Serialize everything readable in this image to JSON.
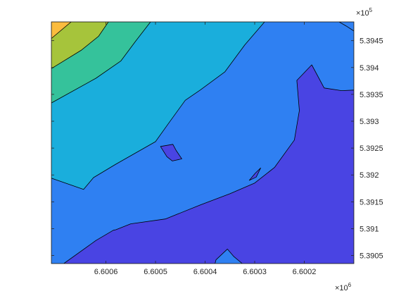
{
  "chart_data": {
    "type": "contourf",
    "title": "",
    "xlabel": "",
    "ylabel": "",
    "x_direction": "reverse",
    "xlim": [
      6.6001,
      6.60071
    ],
    "ylim": [
      5.39035,
      5.39485
    ],
    "x_ticks": [
      6.6006,
      6.6005,
      6.6004,
      6.6003,
      6.6002
    ],
    "x_tick_labels": [
      "6.6006",
      "6.6005",
      "6.6004",
      "6.6003",
      "6.6002"
    ],
    "y_ticks": [
      5.3905,
      5.391,
      5.3915,
      5.392,
      5.3925,
      5.393,
      5.3935,
      5.394,
      5.3945
    ],
    "y_tick_labels": [
      "5.3905",
      "5.391",
      "5.3915",
      "5.392",
      "5.3925",
      "5.393",
      "5.3935",
      "5.394",
      "5.3945"
    ],
    "x_exponent": {
      "base": "×10",
      "power": "6"
    },
    "y_exponent": {
      "base": "×10",
      "power": "5"
    },
    "levels": [
      {
        "name": "level-1",
        "color": "#4944e3"
      },
      {
        "name": "level-2",
        "color": "#2f80f2"
      },
      {
        "name": "level-3",
        "color": "#1aaedc"
      },
      {
        "name": "level-4",
        "color": "#35c29b"
      },
      {
        "name": "level-5",
        "color": "#a6c43b"
      },
      {
        "name": "level-6",
        "color": "#fbbc3e"
      }
    ],
    "regions": [
      {
        "name": "region-level-2",
        "level": 1,
        "points": [
          [
            6.60071,
            5.39035
          ],
          [
            6.60071,
            5.39485
          ],
          [
            6.6001,
            5.39485
          ],
          [
            6.6001,
            5.39035
          ]
        ]
      },
      {
        "name": "region-level-1-main",
        "level": 0,
        "points": [
          [
            6.60071,
            5.39035
          ],
          [
            6.600685,
            5.39035
          ],
          [
            6.60062,
            5.39078
          ],
          [
            6.600585,
            5.39097
          ],
          [
            6.60058,
            5.39098
          ],
          [
            6.60055,
            5.39109
          ],
          [
            6.60048,
            5.39118
          ],
          [
            6.60041,
            5.39144
          ],
          [
            6.60035,
            5.39165
          ],
          [
            6.6003,
            5.39185
          ],
          [
            6.60026,
            5.39214
          ],
          [
            6.60022,
            5.39265
          ],
          [
            6.60021,
            5.3932
          ],
          [
            6.600215,
            5.39376
          ],
          [
            6.600185,
            5.39405
          ],
          [
            6.60016,
            5.39362
          ],
          [
            6.600125,
            5.39357
          ],
          [
            6.6001,
            5.39358
          ],
          [
            6.6001,
            5.39035
          ]
        ]
      },
      {
        "name": "region-level-1-island",
        "level": 0,
        "points": [
          [
            6.600311,
            5.3919
          ],
          [
            6.600297,
            5.39196
          ],
          [
            6.600288,
            5.39213
          ],
          [
            6.600299,
            5.39203
          ]
        ]
      },
      {
        "name": "region-level-1-vessel",
        "level": 0,
        "points": [
          [
            6.60049,
            5.39253
          ],
          [
            6.600465,
            5.39257
          ],
          [
            6.600458,
            5.39245
          ],
          [
            6.600447,
            5.3923
          ],
          [
            6.600466,
            5.39226
          ],
          [
            6.600477,
            5.39234
          ]
        ]
      },
      {
        "name": "region-level-2-bottom",
        "level": 1,
        "points": [
          [
            6.60038,
            5.39035
          ],
          [
            6.600378,
            5.39042
          ],
          [
            6.600355,
            5.39062
          ],
          [
            6.600342,
            5.39048
          ],
          [
            6.600325,
            5.39035
          ]
        ]
      },
      {
        "name": "region-level-3",
        "level": 2,
        "points": [
          [
            6.60071,
            5.39194
          ],
          [
            6.600645,
            5.39173
          ],
          [
            6.600625,
            5.39195
          ],
          [
            6.60058,
            5.3922
          ],
          [
            6.60054,
            5.39241
          ],
          [
            6.6005,
            5.39262
          ],
          [
            6.600473,
            5.39297
          ],
          [
            6.60044,
            5.39339
          ],
          [
            6.60041,
            5.39358
          ],
          [
            6.60036,
            5.39392
          ],
          [
            6.60032,
            5.39442
          ],
          [
            6.60028,
            5.39485
          ],
          [
            6.60071,
            5.39485
          ]
        ]
      },
      {
        "name": "region-level-4",
        "level": 3,
        "points": [
          [
            6.60071,
            5.39334
          ],
          [
            6.60062,
            5.3938
          ],
          [
            6.60057,
            5.39412
          ],
          [
            6.60054,
            5.39449
          ],
          [
            6.60051,
            5.39485
          ],
          [
            6.60071,
            5.39485
          ]
        ]
      },
      {
        "name": "region-level-5",
        "level": 4,
        "points": [
          [
            6.60071,
            5.39398
          ],
          [
            6.60065,
            5.39432
          ],
          [
            6.600615,
            5.39458
          ],
          [
            6.600595,
            5.39485
          ],
          [
            6.60071,
            5.39485
          ]
        ]
      },
      {
        "name": "region-level-6",
        "level": 5,
        "points": [
          [
            6.60071,
            5.39454
          ],
          [
            6.60067,
            5.39485
          ],
          [
            6.60071,
            5.39485
          ]
        ]
      },
      {
        "name": "region-level-2-corner",
        "level": 1,
        "points": [
          [
            6.6001,
            5.39485
          ],
          [
            6.6001,
            5.39468
          ],
          [
            6.600115,
            5.39477
          ],
          [
            6.60013,
            5.39485
          ]
        ]
      }
    ]
  }
}
